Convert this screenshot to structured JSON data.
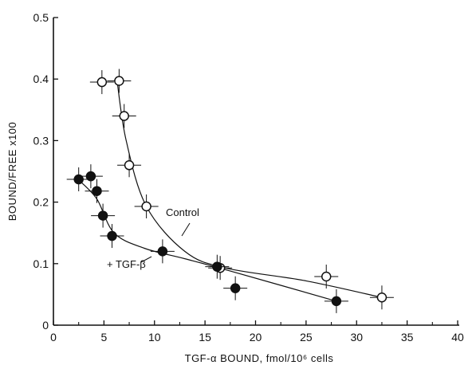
{
  "chart_data": {
    "type": "scatter",
    "xlabel": "TGF-α BOUND, fmol/10⁶ cells",
    "ylabel": "BOUND/FREE x100",
    "xlim": [
      0,
      40
    ],
    "ylim": [
      0,
      0.5
    ],
    "x_ticks": [
      0,
      5,
      10,
      15,
      20,
      25,
      30,
      35,
      40
    ],
    "y_ticks": [
      0,
      0.1,
      0.2,
      0.3,
      0.4,
      0.5
    ],
    "x_tick_labels": [
      "0",
      "5",
      "10",
      "15",
      "20",
      "25",
      "30",
      "35",
      "40"
    ],
    "y_tick_labels": [
      "0",
      "0.1",
      "0.2",
      "0.3",
      "0.4",
      "0.5"
    ],
    "grid": false,
    "series": [
      {
        "name": "Control",
        "marker": "open-circle",
        "color": "#111111",
        "points": [
          {
            "x": 4.8,
            "y": 0.395
          },
          {
            "x": 6.5,
            "y": 0.397
          },
          {
            "x": 7.0,
            "y": 0.34
          },
          {
            "x": 7.5,
            "y": 0.26
          },
          {
            "x": 9.2,
            "y": 0.193
          },
          {
            "x": 16.5,
            "y": 0.093
          },
          {
            "x": 27.0,
            "y": 0.079
          },
          {
            "x": 32.5,
            "y": 0.045
          }
        ]
      },
      {
        "name": "+ TGF-β",
        "marker": "filled-circle",
        "color": "#111111",
        "points": [
          {
            "x": 2.5,
            "y": 0.237
          },
          {
            "x": 3.7,
            "y": 0.242
          },
          {
            "x": 4.3,
            "y": 0.218
          },
          {
            "x": 4.9,
            "y": 0.178
          },
          {
            "x": 5.8,
            "y": 0.145
          },
          {
            "x": 10.8,
            "y": 0.12
          },
          {
            "x": 16.2,
            "y": 0.095
          },
          {
            "x": 18.0,
            "y": 0.06
          },
          {
            "x": 28.0,
            "y": 0.039
          }
        ]
      }
    ],
    "annotations": [
      {
        "text": "Control",
        "series": "Control"
      },
      {
        "text": "+ TGF-β",
        "series": "+ TGF-β"
      }
    ]
  }
}
